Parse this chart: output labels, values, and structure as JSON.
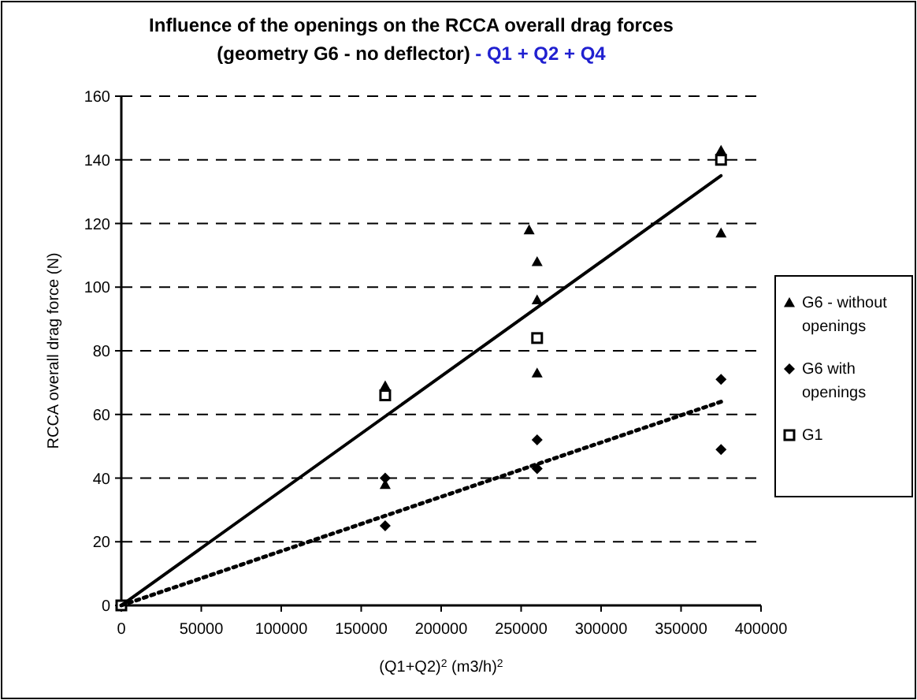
{
  "chart_data": {
    "type": "scatter",
    "title": "Influence of the openings on the RCCA overall drag forces",
    "subtitle": [
      "(geometry G6 - no deflector)",
      "- Q1 + Q2 + Q4"
    ],
    "xlabel": "(Q1+Q2)$^{2}$   (m3/h)$^{2}$",
    "ylabel": "RCCA overall drag force (N)",
    "xlim": [
      0,
      400000
    ],
    "xticks": [
      0,
      50000,
      100000,
      150000,
      200000,
      250000,
      300000,
      350000,
      400000
    ],
    "ylim": [
      0,
      160
    ],
    "yticks": [
      0,
      20,
      40,
      60,
      80,
      100,
      120,
      140,
      160
    ],
    "grid": "y",
    "legend": "right",
    "series": [
      {
        "name": "G6 - without openings",
        "color": "#000000",
        "marker": "triangle",
        "x": [
          165000,
          165000,
          255000,
          260000,
          260000,
          260000,
          375000,
          375000
        ],
        "values": [
          69,
          38,
          118,
          108,
          96,
          73,
          143,
          117
        ]
      },
      {
        "name": "G6 with openings",
        "color": "#000000",
        "marker": "diamond",
        "x": [
          165000,
          165000,
          260000,
          260000,
          375000,
          375000
        ],
        "values": [
          40,
          25,
          52,
          43,
          71,
          49
        ]
      },
      {
        "name": "G1",
        "color": "#000000",
        "marker": "square",
        "x": [
          0,
          165000,
          260000,
          375000
        ],
        "values": [
          0,
          66,
          84,
          140
        ]
      },
      {
        "type": "line",
        "color": "#000000",
        "line_style": "solid",
        "x": [
          0,
          375000
        ],
        "values": [
          0,
          135
        ]
      },
      {
        "type": "line",
        "color": "#000000",
        "line_style": "dotted",
        "x": [
          0,
          375000
        ],
        "values": [
          0,
          64
        ]
      }
    ]
  }
}
